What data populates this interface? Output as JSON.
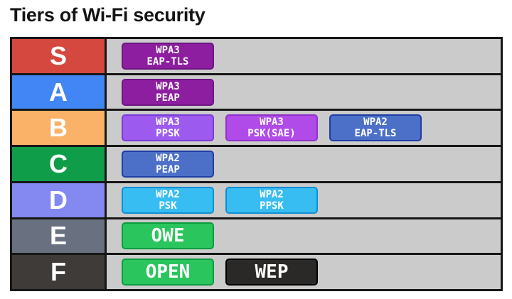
{
  "title": "Tiers of Wi-Fi security",
  "colors": {
    "page_bg": "#ffffff",
    "title_text": "#141414",
    "table_line": "#161616",
    "row_bg": "#cbcbcb",
    "tier_letter": "#ffffff",
    "badge_text": "#ffffff"
  },
  "tiers": [
    {
      "label": "S",
      "color": "#d5483f",
      "badges": [
        {
          "name": "wpa3-eap-tls",
          "lines": [
            "WPA3",
            "EAP-TLS"
          ],
          "fill": "#8c1e9f",
          "border": "#6e1583"
        }
      ]
    },
    {
      "label": "A",
      "color": "#4285f4",
      "badges": [
        {
          "name": "wpa3-peap",
          "lines": [
            "WPA3",
            "PEAP"
          ],
          "fill": "#8c1e9f",
          "border": "#6e1583"
        }
      ]
    },
    {
      "label": "B",
      "color": "#f9b268",
      "badges": [
        {
          "name": "wpa3-ppsk",
          "lines": [
            "WPA3",
            "PPSK"
          ],
          "fill": "#9c5bee",
          "border": "#7b3bd6"
        },
        {
          "name": "wpa3-psk-sae",
          "lines": [
            "WPA3",
            "PSK(SAE)"
          ],
          "fill": "#b04be9",
          "border": "#9231c9"
        },
        {
          "name": "wpa2-eap-tls",
          "lines": [
            "WPA2",
            "EAP-TLS"
          ],
          "fill": "#4c70c8",
          "border": "#1f3ea3"
        }
      ]
    },
    {
      "label": "C",
      "color": "#0f9d49",
      "badges": [
        {
          "name": "wpa2-peap",
          "lines": [
            "WPA2",
            "PEAP"
          ],
          "fill": "#4c70c8",
          "border": "#1f3ea3"
        }
      ]
    },
    {
      "label": "D",
      "color": "#8389f0",
      "badges": [
        {
          "name": "wpa2-psk",
          "lines": [
            "WPA2",
            "PSK"
          ],
          "fill": "#38bdf3",
          "border": "#0e8fd4"
        },
        {
          "name": "wpa2-ppsk",
          "lines": [
            "WPA2",
            "PPSK"
          ],
          "fill": "#38bdf3",
          "border": "#0e8fd4"
        }
      ]
    },
    {
      "label": "E",
      "color": "#697080",
      "badges": [
        {
          "name": "owe",
          "lines": [
            "OWE"
          ],
          "fill": "#2bc55e",
          "border": "#0c9c3c"
        }
      ]
    },
    {
      "label": "F",
      "color": "#3e3b38",
      "badges": [
        {
          "name": "open",
          "lines": [
            "OPEN"
          ],
          "fill": "#2bc55e",
          "border": "#0c9c3c"
        },
        {
          "name": "wep",
          "lines": [
            "WEP"
          ],
          "fill": "#2b2927",
          "border": "#000000"
        }
      ]
    }
  ]
}
